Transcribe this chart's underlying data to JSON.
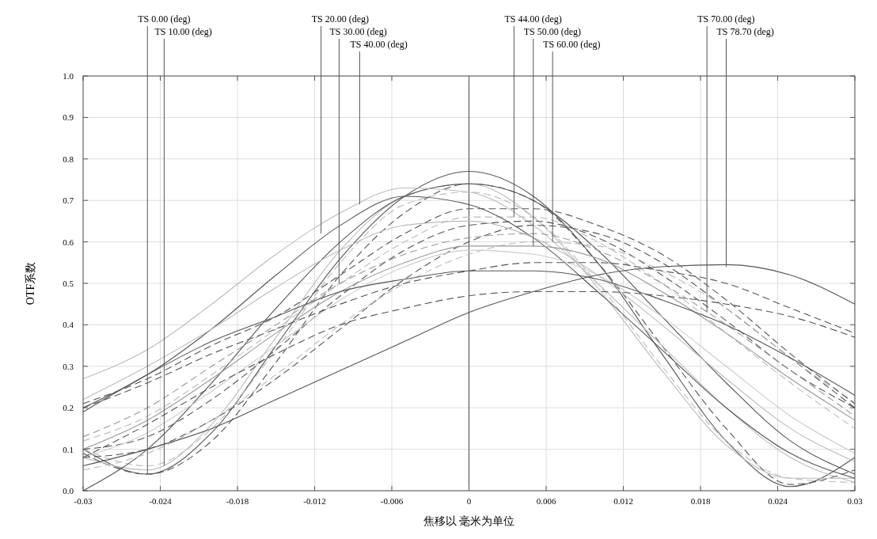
{
  "chart_data": {
    "type": "line",
    "xlabel": "焦移以 毫米为单位",
    "ylabel": "OTF系数",
    "x": [
      -0.03,
      -0.025,
      -0.02,
      -0.015,
      -0.01,
      -0.005,
      0,
      0.005,
      0.01,
      0.015,
      0.02,
      0.025,
      0.03
    ],
    "xlim": [
      -0.03,
      0.03
    ],
    "xticks": [
      -0.03,
      -0.024,
      -0.018,
      -0.012,
      -0.006,
      0,
      0.006,
      0.012,
      0.018,
      0.024,
      0.03
    ],
    "ylim": [
      0,
      1
    ],
    "yticks": [
      {
        "value": 0,
        "label": "0.0"
      },
      {
        "value": 0.1,
        "label": "0.1"
      },
      {
        "value": 0.2,
        "label": "0.2"
      },
      {
        "value": 0.3,
        "label": "0.3"
      },
      {
        "value": 0.4,
        "label": "0.4"
      },
      {
        "value": 0.5,
        "label": "0.5"
      },
      {
        "value": 0.6,
        "label": "0.6"
      },
      {
        "value": 0.7,
        "label": "0.7"
      },
      {
        "value": 0.8,
        "label": "0.8"
      },
      {
        "value": 0.9,
        "label": "0.9"
      },
      {
        "value": 1,
        "label": "1.0"
      }
    ],
    "grid": true,
    "ref_lines": [
      {
        "axis": "x",
        "value": 0,
        "color": "#444444"
      }
    ],
    "series": [
      {
        "color": "#555555",
        "line_style": "solid",
        "values": [
          0.1,
          0.04,
          0.14,
          0.35,
          0.56,
          0.71,
          0.77,
          0.71,
          0.55,
          0.33,
          0.12,
          0.01,
          0.08
        ]
      },
      {
        "color": "#555555",
        "line_style": "dashed",
        "values": [
          0.09,
          0.04,
          0.12,
          0.31,
          0.52,
          0.67,
          0.74,
          0.7,
          0.55,
          0.35,
          0.15,
          0.015,
          0.05
        ]
      },
      {
        "color": "#bbbbbb",
        "line_style": "solid",
        "values": [
          0.08,
          0.05,
          0.16,
          0.37,
          0.58,
          0.71,
          0.74,
          0.66,
          0.49,
          0.29,
          0.11,
          0.03,
          0.03
        ]
      },
      {
        "color": "#bbbbbb",
        "line_style": "dashed",
        "values": [
          0.1,
          0.06,
          0.15,
          0.34,
          0.55,
          0.69,
          0.72,
          0.66,
          0.5,
          0.3,
          0.12,
          0.03,
          0.02
        ]
      },
      {
        "color": "#555555",
        "line_style": "solid",
        "values": [
          0.0,
          0.1,
          0.26,
          0.44,
          0.6,
          0.71,
          0.74,
          0.7,
          0.58,
          0.42,
          0.26,
          0.12,
          0.04
        ]
      },
      {
        "color": "#555555",
        "line_style": "dashed",
        "values": [
          0.08,
          0.1,
          0.17,
          0.27,
          0.39,
          0.51,
          0.6,
          0.64,
          0.62,
          0.55,
          0.44,
          0.32,
          0.2
        ]
      },
      {
        "color": "#bbbbbb",
        "line_style": "solid",
        "values": [
          0.27,
          0.34,
          0.45,
          0.57,
          0.67,
          0.73,
          0.72,
          0.64,
          0.5,
          0.35,
          0.2,
          0.08,
          0.02
        ]
      },
      {
        "color": "#bbbbbb",
        "line_style": "dashed",
        "values": [
          0.12,
          0.18,
          0.28,
          0.39,
          0.5,
          0.6,
          0.66,
          0.66,
          0.6,
          0.5,
          0.38,
          0.26,
          0.15
        ]
      },
      {
        "color": "#555555",
        "line_style": "solid",
        "values": [
          0.2,
          0.28,
          0.39,
          0.52,
          0.64,
          0.71,
          0.69,
          0.61,
          0.48,
          0.34,
          0.2,
          0.09,
          0.03
        ]
      },
      {
        "color": "#555555",
        "line_style": "dashed",
        "values": [
          0.1,
          0.13,
          0.22,
          0.34,
          0.47,
          0.58,
          0.64,
          0.65,
          0.61,
          0.52,
          0.41,
          0.29,
          0.2
        ]
      },
      {
        "color": "#bbbbbb",
        "line_style": "solid",
        "values": [
          0.22,
          0.3,
          0.39,
          0.49,
          0.58,
          0.64,
          0.65,
          0.61,
          0.52,
          0.4,
          0.27,
          0.15,
          0.07
        ]
      },
      {
        "color": "#bbbbbb",
        "line_style": "dashed",
        "values": [
          0.05,
          0.09,
          0.17,
          0.28,
          0.4,
          0.5,
          0.57,
          0.6,
          0.59,
          0.53,
          0.44,
          0.32,
          0.21
        ]
      },
      {
        "color": "#999999",
        "line_style": "solid",
        "values": [
          0.1,
          0.17,
          0.27,
          0.38,
          0.48,
          0.55,
          0.59,
          0.59,
          0.56,
          0.48,
          0.38,
          0.27,
          0.17
        ]
      },
      {
        "color": "#555555",
        "line_style": "dashed",
        "values": [
          0.21,
          0.27,
          0.35,
          0.42,
          0.52,
          0.62,
          0.68,
          0.68,
          0.64,
          0.57,
          0.46,
          0.33,
          0.21
        ]
      },
      {
        "color": "#cccccc",
        "line_style": "solid",
        "values": [
          0.08,
          0.14,
          0.24,
          0.35,
          0.46,
          0.54,
          0.58,
          0.57,
          0.52,
          0.42,
          0.3,
          0.18,
          0.09
        ]
      },
      {
        "color": "#999999",
        "line_style": "dashed",
        "values": [
          0.13,
          0.2,
          0.3,
          0.4,
          0.5,
          0.57,
          0.61,
          0.62,
          0.58,
          0.5,
          0.4,
          0.29,
          0.18
        ]
      },
      {
        "color": "#555555",
        "line_style": "solid",
        "values": [
          0.19,
          0.28,
          0.36,
          0.42,
          0.48,
          0.51,
          0.53,
          0.53,
          0.51,
          0.46,
          0.4,
          0.32,
          0.23
        ]
      },
      {
        "color": "#555555",
        "line_style": "dashed",
        "values": [
          0.2,
          0.26,
          0.33,
          0.39,
          0.45,
          0.5,
          0.53,
          0.55,
          0.55,
          0.53,
          0.5,
          0.44,
          0.38
        ]
      },
      {
        "color": "#555555",
        "line_style": "solid",
        "values": [
          0.06,
          0.1,
          0.15,
          0.22,
          0.29,
          0.36,
          0.43,
          0.48,
          0.52,
          0.54,
          0.545,
          0.52,
          0.45
        ]
      },
      {
        "color": "#555555",
        "line_style": "dashed",
        "values": [
          0.08,
          0.16,
          0.25,
          0.33,
          0.4,
          0.44,
          0.47,
          0.48,
          0.48,
          0.47,
          0.45,
          0.42,
          0.37
        ]
      }
    ],
    "annotations": [
      {
        "text": "TS 0.00 (deg)",
        "x": -0.025,
        "y": 0.04
      },
      {
        "text": "TS 10.00 (deg)",
        "x": -0.0237,
        "y": 0.06
      },
      {
        "text": "TS 20.00 (deg)",
        "x": -0.0115,
        "y": 0.62
      },
      {
        "text": "TS 30.00 (deg)",
        "x": -0.0101,
        "y": 0.5
      },
      {
        "text": "TS 40.00 (deg)",
        "x": -0.0085,
        "y": 0.69
      },
      {
        "text": "TS 44.00 (deg)",
        "x": 0.0035,
        "y": 0.66
      },
      {
        "text": "TS 50.00 (deg)",
        "x": 0.005,
        "y": 0.59
      },
      {
        "text": "TS 60.00 (deg)",
        "x": 0.0065,
        "y": 0.6
      },
      {
        "text": "TS 70.00 (deg)",
        "x": 0.0185,
        "y": 0.43
      },
      {
        "text": "TS 78.70 (deg)",
        "x": 0.02,
        "y": 0.54
      }
    ]
  }
}
